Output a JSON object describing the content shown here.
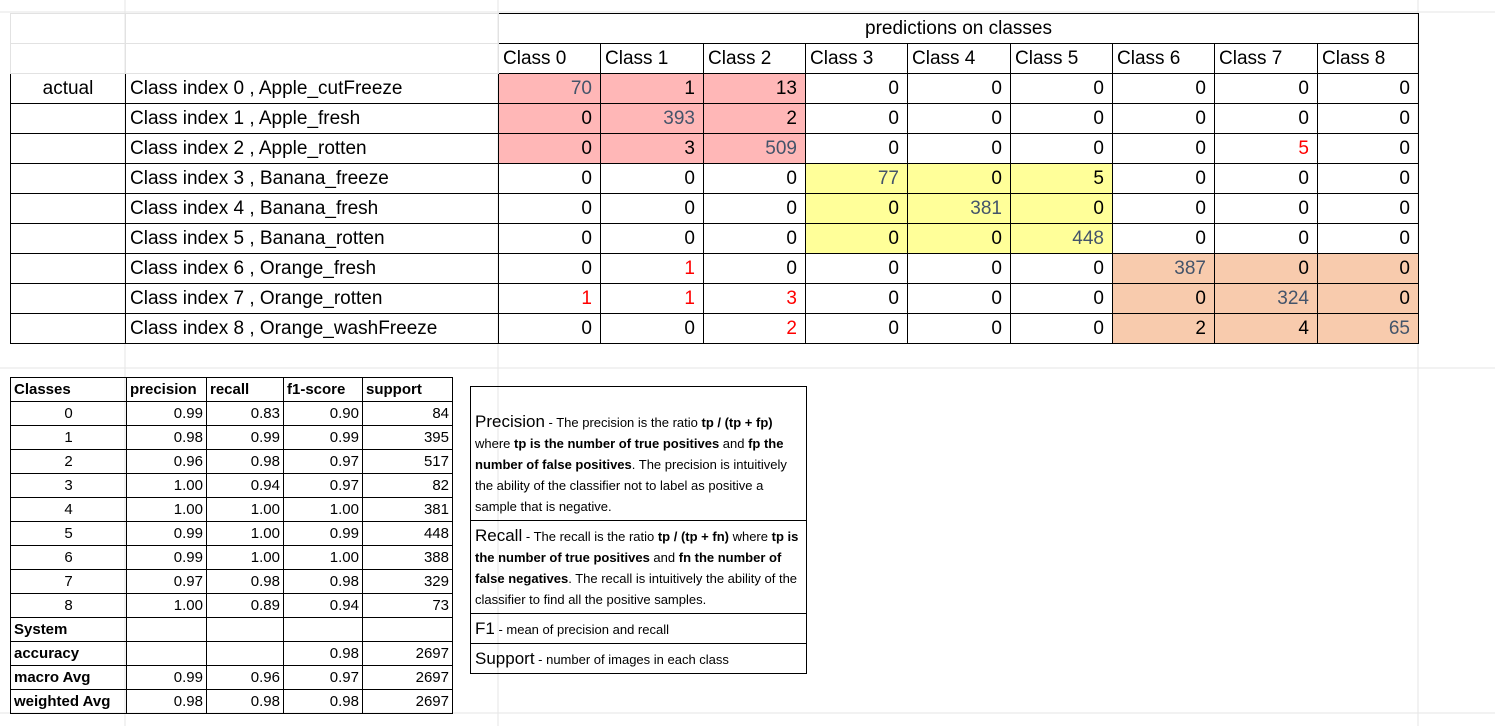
{
  "matrix": {
    "header": "predictions on classes",
    "row_header": "actual",
    "columns": [
      "Class 0",
      "Class 1",
      "Class 2",
      "Class 3",
      "Class 4",
      "Class 5",
      "Class 6",
      "Class 7",
      "Class 8"
    ],
    "rows": [
      {
        "label": "Class index 0 ,  Apple_cutFreeze",
        "values": [
          "70",
          "1",
          "13",
          "0",
          "0",
          "0",
          "0",
          "0",
          "0"
        ]
      },
      {
        "label": "Class index 1 ,  Apple_fresh",
        "values": [
          "0",
          "393",
          "2",
          "0",
          "0",
          "0",
          "0",
          "0",
          "0"
        ]
      },
      {
        "label": "Class index 2 ,  Apple_rotten",
        "values": [
          "0",
          "3",
          "509",
          "0",
          "0",
          "0",
          "0",
          "5",
          "0"
        ]
      },
      {
        "label": "Class index 3 ,  Banana_freeze",
        "values": [
          "0",
          "0",
          "0",
          "77",
          "0",
          "5",
          "0",
          "0",
          "0"
        ]
      },
      {
        "label": "Class index 4 ,  Banana_fresh",
        "values": [
          "0",
          "0",
          "0",
          "0",
          "381",
          "0",
          "0",
          "0",
          "0"
        ]
      },
      {
        "label": "Class index 5 ,  Banana_rotten",
        "values": [
          "0",
          "0",
          "0",
          "0",
          "0",
          "448",
          "0",
          "0",
          "0"
        ]
      },
      {
        "label": "Class index 6 ,  Orange_fresh",
        "values": [
          "0",
          "1",
          "0",
          "0",
          "0",
          "0",
          "387",
          "0",
          "0"
        ]
      },
      {
        "label": "Class index 7 ,  Orange_rotten",
        "values": [
          "1",
          "1",
          "3",
          "0",
          "0",
          "0",
          "0",
          "324",
          "0"
        ]
      },
      {
        "label": "Class index 8 ,  Orange_washFreeze",
        "values": [
          "0",
          "0",
          "2",
          "0",
          "0",
          "0",
          "2",
          "4",
          "65"
        ]
      }
    ]
  },
  "metrics": {
    "headers": [
      "Classes",
      "precision",
      "recall",
      "f1-score",
      "support"
    ],
    "rows": [
      [
        "0",
        "0.99",
        "0.83",
        "0.90",
        "84"
      ],
      [
        "1",
        "0.98",
        "0.99",
        "0.99",
        "395"
      ],
      [
        "2",
        "0.96",
        "0.98",
        "0.97",
        "517"
      ],
      [
        "3",
        "1.00",
        "0.94",
        "0.97",
        "82"
      ],
      [
        "4",
        "1.00",
        "1.00",
        "1.00",
        "381"
      ],
      [
        "5",
        "0.99",
        "1.00",
        "0.99",
        "448"
      ],
      [
        "6",
        "0.99",
        "1.00",
        "1.00",
        "388"
      ],
      [
        "7",
        "0.97",
        "0.98",
        "0.98",
        "329"
      ],
      [
        "8",
        "1.00",
        "0.89",
        "0.94",
        "73"
      ]
    ],
    "system_label": "System",
    "summary": [
      [
        "accuracy",
        "",
        "",
        "0.98",
        "2697"
      ],
      [
        "macro Avg",
        "0.99",
        "0.96",
        "0.97",
        "2697"
      ],
      [
        "weighted Avg",
        "0.98",
        "0.98",
        "0.98",
        "2697"
      ]
    ]
  },
  "definitions": {
    "precision": {
      "term": "Precision",
      "t1": " - The precision is the ratio ",
      "b1": "tp / (tp + fp)",
      "t2": " where ",
      "b2": "tp is the number of true positives",
      "t3": " and ",
      "b3": "fp the number of false positives",
      "t4": ". The precision is intuitively the ability of the classifier not to label as positive a sample that is negative."
    },
    "recall": {
      "term": "Recall",
      "t1": " - The recall is the ratio ",
      "b1": "tp / (tp + fn)",
      "t2": " where ",
      "b2": "tp is the number of true positives",
      "t3": " and ",
      "b3": "fn the number of false negatives",
      "t4": ". The recall is intuitively the ability of the classifier to find all the positive samples."
    },
    "f1": {
      "term": "F1",
      "text": " - mean of precision and recall"
    },
    "support": {
      "term": "Support",
      "text": " - number of images in each class"
    }
  },
  "colors": {
    "pink": "#ffb7b7",
    "yellow": "#ffff99",
    "peach": "#f8cbad",
    "blue_text": "#44546a",
    "red_text": "#ff0000"
  }
}
